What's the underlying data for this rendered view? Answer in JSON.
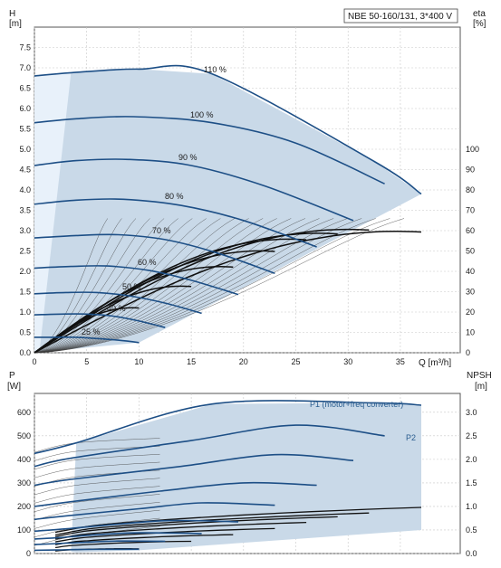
{
  "title": "NBE 50-160/131, 3*400 V",
  "colors": {
    "band": "#c9d9e8",
    "band_light": "#e8f1fa",
    "curve": "#1d4f86",
    "thin": "#3a3a3a",
    "eff": "#111111",
    "grid": "#c8c8c8"
  },
  "chart_data": [
    {
      "type": "line",
      "name": "head",
      "x_axis": {
        "label": "Q [m³/h]",
        "range": [
          0,
          37
        ],
        "ticks": [
          0,
          5,
          10,
          15,
          20,
          25,
          30,
          35
        ]
      },
      "y_axis": {
        "label": "H",
        "unit": "[m]",
        "range": [
          0,
          8.0
        ],
        "ticks": [
          "0.0",
          "0.5",
          "1.0",
          "1.5",
          "2.0",
          "2.5",
          "3.0",
          "3.5",
          "4.0",
          "4.5",
          "5.0",
          "5.5",
          "6.0",
          "6.5",
          "7.0",
          "7.5"
        ]
      },
      "y2_axis": {
        "label": "eta",
        "unit": "[%]",
        "range": [
          0,
          100
        ],
        "ticks": [
          "0",
          "10",
          "20",
          "30",
          "40",
          "50",
          "60",
          "70",
          "80",
          "90",
          "100"
        ]
      },
      "speed_curves": [
        {
          "label": "110 %",
          "x": [
            0,
            3.5,
            10,
            17,
            32.5,
            37
          ],
          "y": [
            6.8,
            6.88,
            6.97,
            6.85,
            4.7,
            3.9
          ]
        },
        {
          "label": "100 %",
          "x": [
            0,
            4,
            9.5,
            17,
            25,
            33.5
          ],
          "y": [
            5.65,
            5.75,
            5.8,
            5.65,
            5.15,
            4.15
          ]
        },
        {
          "label": "90 %",
          "x": [
            0,
            4,
            9,
            15,
            22,
            30.5
          ],
          "y": [
            4.6,
            4.72,
            4.75,
            4.6,
            4.1,
            3.25
          ]
        },
        {
          "label": "80 %",
          "x": [
            0,
            4,
            8.5,
            14,
            20,
            27
          ],
          "y": [
            3.65,
            3.75,
            3.77,
            3.62,
            3.25,
            2.6
          ]
        },
        {
          "label": "70 %",
          "x": [
            0,
            4,
            8,
            12.5,
            17.5,
            23
          ],
          "y": [
            2.82,
            2.88,
            2.9,
            2.78,
            2.45,
            1.95
          ]
        },
        {
          "label": "60 %",
          "x": [
            0,
            3.5,
            7,
            11,
            15,
            19.5
          ],
          "y": [
            2.08,
            2.12,
            2.13,
            2.02,
            1.78,
            1.43
          ]
        },
        {
          "label": "50 %",
          "x": [
            0,
            3,
            6,
            9,
            12.5,
            16
          ],
          "y": [
            1.45,
            1.48,
            1.48,
            1.4,
            1.22,
            0.97
          ]
        },
        {
          "label": "40 %",
          "x": [
            0,
            2.5,
            5,
            7.5,
            10,
            12.5
          ],
          "y": [
            0.93,
            0.95,
            0.95,
            0.9,
            0.78,
            0.62
          ]
        },
        {
          "label": "25 %",
          "x": [
            0,
            2,
            4,
            6,
            8,
            10
          ],
          "y": [
            0.38,
            0.38,
            0.38,
            0.35,
            0.31,
            0.25
          ]
        }
      ],
      "envelope_right_edge": [
        [
          0,
          0
        ],
        [
          10,
          0.25
        ],
        [
          37,
          3.9
        ]
      ],
      "efficiency_curves": {
        "count": 8,
        "end_x": [
          10,
          15,
          19,
          23,
          26,
          29,
          32,
          37
        ],
        "end_y": [
          1.15,
          1.7,
          2.2,
          2.6,
          2.9,
          3.05,
          3.15,
          3.1
        ]
      }
    },
    {
      "type": "line",
      "name": "power",
      "x_axis": {
        "range": [
          0,
          37
        ]
      },
      "y_axis": {
        "label": "P",
        "unit": "[W]",
        "range": [
          0,
          650
        ],
        "ticks": [
          "0",
          "100",
          "200",
          "300",
          "400",
          "500",
          "600"
        ]
      },
      "y2_axis": {
        "label": "NPSH",
        "unit": "[m]",
        "range": [
          0,
          3.25
        ],
        "ticks": [
          "0.0",
          "0.5",
          "1.0",
          "1.5",
          "2.0",
          "2.5",
          "3.0"
        ]
      },
      "series_labels": [
        "P1 (motor+freq converter)",
        "P2"
      ],
      "power_curves": [
        {
          "x": [
            0,
            4,
            17,
            32.5,
            37
          ],
          "y": [
            425,
            470,
            635,
            640,
            630
          ]
        },
        {
          "x": [
            0,
            3.5,
            15,
            25,
            33.5
          ],
          "y": [
            370,
            405,
            480,
            545,
            500
          ]
        },
        {
          "x": [
            0,
            3.5,
            14,
            23,
            30.5
          ],
          "y": [
            290,
            315,
            370,
            420,
            395
          ]
        },
        {
          "x": [
            0,
            3.5,
            12,
            20,
            27
          ],
          "y": [
            200,
            220,
            265,
            300,
            290
          ]
        },
        {
          "x": [
            0,
            3,
            10,
            16,
            23
          ],
          "y": [
            145,
            160,
            190,
            215,
            205
          ]
        },
        {
          "x": [
            0,
            3,
            8,
            13,
            19.5
          ],
          "y": [
            95,
            105,
            125,
            140,
            135
          ]
        },
        {
          "x": [
            0,
            2.5,
            6,
            10,
            16
          ],
          "y": [
            62,
            68,
            80,
            88,
            85
          ]
        },
        {
          "x": [
            0,
            2,
            5,
            8,
            12.5
          ],
          "y": [
            38,
            42,
            48,
            53,
            52
          ]
        },
        {
          "x": [
            0,
            2,
            4,
            7,
            10
          ],
          "y": [
            14,
            15,
            17,
            18,
            18
          ]
        }
      ],
      "npsh_curves": {
        "count": 8,
        "top_x": [
          37,
          32,
          29,
          26,
          23,
          19,
          15,
          10
        ],
        "top_y": [
          1.0,
          0.88,
          0.8,
          0.68,
          0.55,
          0.42,
          0.28,
          0.12
        ]
      }
    }
  ]
}
